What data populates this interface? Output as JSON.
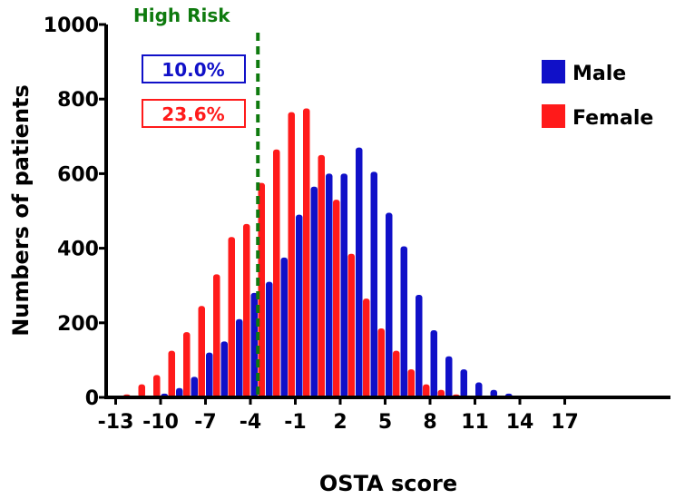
{
  "chart_data": {
    "type": "bar",
    "title": "",
    "xlabel": "OSTA score",
    "ylabel": "Numbers of patients",
    "ylim": [
      0,
      1000
    ],
    "yticks": [
      "0",
      "200",
      "400",
      "600",
      "800",
      "1000"
    ],
    "xticks": [
      "-13",
      "-10",
      "-7",
      "-4",
      "-1",
      "2",
      "5",
      "8",
      "11",
      "14",
      "17"
    ],
    "x": [
      -13,
      -12,
      -11,
      -10,
      -9,
      -8,
      -7,
      -6,
      -5,
      -4,
      -3,
      -2,
      -1,
      0,
      1,
      2,
      3,
      4,
      5,
      6,
      7,
      8,
      9,
      10,
      11,
      12,
      13,
      14,
      15,
      16,
      17,
      18
    ],
    "series": [
      {
        "name": "Male",
        "color": "#1010c8",
        "values": [
          1,
          2,
          5,
          10,
          25,
          55,
          120,
          150,
          210,
          280,
          310,
          375,
          490,
          565,
          600,
          600,
          670,
          605,
          495,
          405,
          275,
          180,
          110,
          75,
          40,
          20,
          10,
          5,
          3,
          2,
          1,
          1
        ]
      },
      {
        "name": "Female",
        "color": "#ff1a1a",
        "values": [
          3,
          8,
          35,
          60,
          125,
          175,
          245,
          330,
          430,
          465,
          575,
          665,
          765,
          775,
          650,
          530,
          385,
          265,
          185,
          125,
          75,
          35,
          20,
          8,
          3,
          2,
          1,
          1,
          1,
          1,
          0,
          0
        ]
      }
    ],
    "grid": false,
    "legend_position": "top-right",
    "annotations": {
      "threshold_label": "High Risk",
      "threshold_x": -3.5,
      "threshold_color": "#0e7a0e",
      "male_percent": "10.0%",
      "female_percent": "23.6%"
    }
  }
}
